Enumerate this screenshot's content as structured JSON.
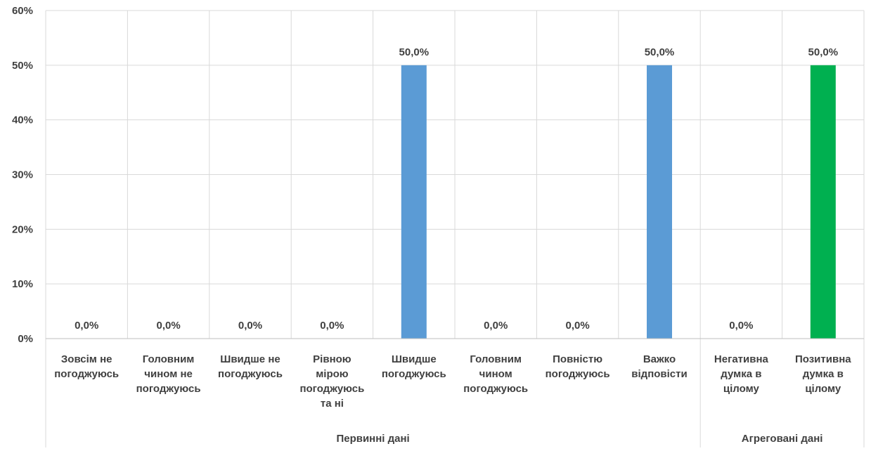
{
  "chart_data": {
    "type": "bar",
    "ylim": [
      0,
      60
    ],
    "y_ticks": [
      "0%",
      "10%",
      "20%",
      "30%",
      "40%",
      "50%",
      "60%"
    ],
    "grid": true,
    "categories": [
      [
        "Зовсім не",
        "погоджуюсь"
      ],
      [
        "Головним",
        "чином не",
        "погоджуюсь"
      ],
      [
        "Швидше не",
        "погоджуюсь"
      ],
      [
        "Рівною",
        "мірою",
        "погоджуюсь",
        "та ні"
      ],
      [
        "Швидше",
        "погоджуюсь"
      ],
      [
        "Головним",
        "чином",
        "погоджуюсь"
      ],
      [
        "Повністю",
        "погоджуюсь"
      ],
      [
        "Важко",
        "відповісти"
      ],
      [
        "Негативна",
        "думка в",
        "цілому"
      ],
      [
        "Позитивна",
        "думка в",
        "цілому"
      ]
    ],
    "values": [
      0,
      0,
      0,
      0,
      50,
      0,
      0,
      50,
      0,
      50
    ],
    "data_labels": [
      "0,0%",
      "0,0%",
      "0,0%",
      "0,0%",
      "50,0%",
      "0,0%",
      "0,0%",
      "50,0%",
      "0,0%",
      "50,0%"
    ],
    "bar_colors": [
      "#5b9bd5",
      "#5b9bd5",
      "#5b9bd5",
      "#5b9bd5",
      "#5b9bd5",
      "#5b9bd5",
      "#5b9bd5",
      "#5b9bd5",
      "#00b050",
      "#00b050"
    ],
    "groups": [
      {
        "label": "Первинні дані",
        "count": 8
      },
      {
        "label": "Агреговані дані",
        "count": 2
      }
    ]
  }
}
